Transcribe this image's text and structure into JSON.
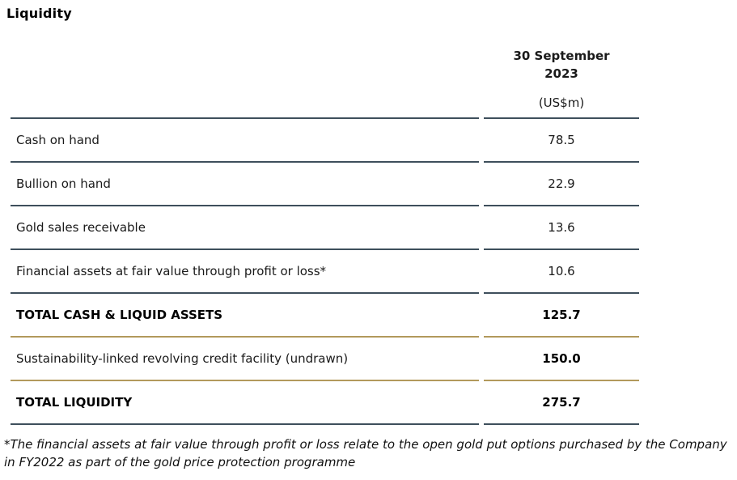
{
  "page": {
    "title": "Liquidity"
  },
  "table": {
    "header": {
      "date_line1": "30 September",
      "date_line2": "2023",
      "unit": "(US$m)"
    },
    "rows": [
      {
        "label": "Cash on hand",
        "value": "78.5",
        "bold_label": false,
        "bold_value": false,
        "divider": "dark"
      },
      {
        "label": "Bullion on hand",
        "value": "22.9",
        "bold_label": false,
        "bold_value": false,
        "divider": "dark"
      },
      {
        "label": "Gold sales receivable",
        "value": "13.6",
        "bold_label": false,
        "bold_value": false,
        "divider": "dark"
      },
      {
        "label": "Financial assets at fair value through profit or loss*",
        "value": "10.6",
        "bold_label": false,
        "bold_value": false,
        "divider": "dark"
      },
      {
        "label": "TOTAL CASH & LIQUID ASSETS",
        "value": "125.7",
        "bold_label": true,
        "bold_value": true,
        "divider": "gold"
      },
      {
        "label": "Sustainability-linked revolving credit facility (undrawn)",
        "value": "150.0",
        "bold_label": false,
        "bold_value": true,
        "divider": "gold"
      },
      {
        "label": "TOTAL LIQUIDITY",
        "value": "275.7",
        "bold_label": true,
        "bold_value": true,
        "divider": "dark"
      }
    ]
  },
  "footnote": "*The financial assets at fair value through profit or loss relate to the open gold put options purchased by the Company in FY2022 as part of the gold price protection programme",
  "colors": {
    "divider_dark": "#3e4f5c",
    "divider_gold": "#b2995c",
    "text": "#1a1a1a"
  }
}
